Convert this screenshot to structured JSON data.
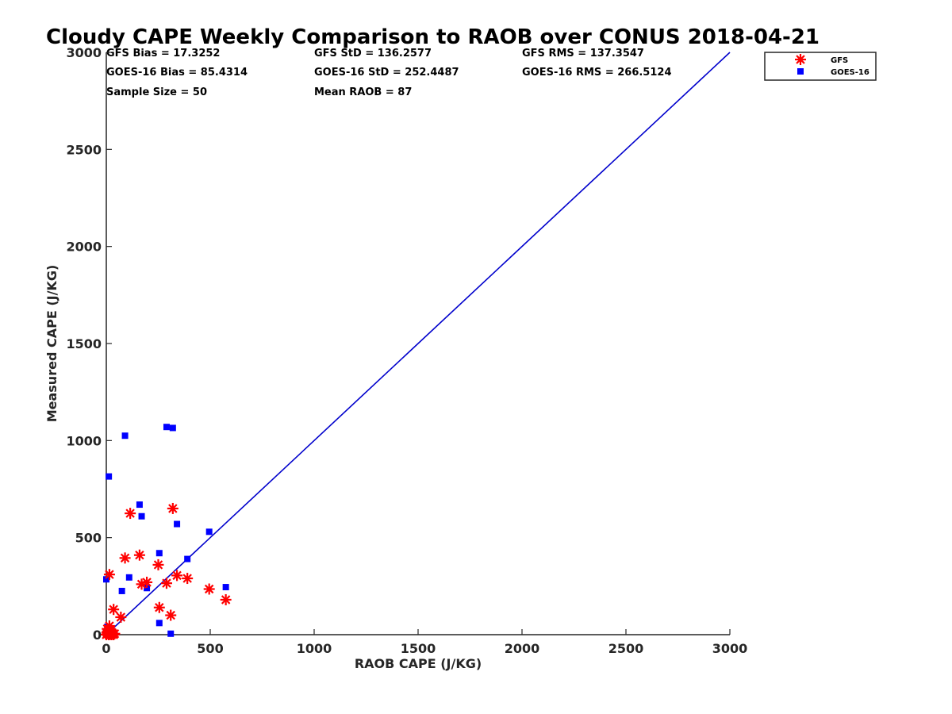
{
  "chart_data": {
    "type": "scatter",
    "title": "Cloudy CAPE Weekly Comparison to RAOB over CONUS 2018-04-21",
    "xlabel": "RAOB CAPE (J/KG)",
    "ylabel": "Measured CAPE (J/KG)",
    "xlim": [
      0,
      3000
    ],
    "ylim": [
      0,
      3000
    ],
    "xticks": [
      0,
      500,
      1000,
      1500,
      2000,
      2500,
      3000
    ],
    "yticks": [
      0,
      500,
      1000,
      1500,
      2000,
      2500,
      3000
    ],
    "tick_labels": [
      "0",
      "500",
      "1000",
      "1500",
      "2000",
      "2500",
      "3000"
    ],
    "grid": false,
    "legend_position": "top-right outside",
    "stats": [
      "GFS Bias = 17.3252",
      "GFS StD = 136.2577",
      "GFS RMS = 137.3547",
      "GOES-16 Bias = 85.4314",
      "GOES-16 StD = 252.4487",
      "GOES-16 RMS = 266.5124",
      "Sample Size = 50",
      "Mean RAOB = 87"
    ],
    "reference_line": {
      "name": "1:1",
      "x": [
        0,
        3000
      ],
      "y": [
        0,
        3000
      ],
      "color": "#0000cc"
    },
    "series": [
      {
        "name": "GFS",
        "marker": "asterisk",
        "color": "#ff0000",
        "x": [
          0,
          3,
          5,
          8,
          10,
          12,
          15,
          18,
          20,
          22,
          25,
          28,
          30,
          35,
          40,
          15,
          35,
          70,
          90,
          115,
          160,
          170,
          195,
          250,
          255,
          290,
          310,
          320,
          340,
          390,
          495,
          575
        ],
        "y": [
          0,
          10,
          30,
          5,
          20,
          0,
          45,
          2,
          15,
          25,
          0,
          10,
          5,
          0,
          5,
          310,
          130,
          90,
          395,
          625,
          410,
          260,
          270,
          360,
          140,
          265,
          100,
          650,
          305,
          290,
          235,
          180
        ]
      },
      {
        "name": "GOES-16",
        "marker": "square",
        "color": "#0000ff",
        "x": [
          0,
          2,
          5,
          8,
          10,
          12,
          15,
          18,
          20,
          25,
          30,
          40,
          0,
          12,
          75,
          90,
          110,
          160,
          170,
          195,
          255,
          255,
          290,
          310,
          320,
          340,
          390,
          495,
          575
        ],
        "y": [
          0,
          5,
          40,
          0,
          15,
          20,
          0,
          30,
          5,
          10,
          0,
          5,
          285,
          815,
          225,
          1025,
          295,
          670,
          610,
          240,
          420,
          60,
          1070,
          5,
          1065,
          570,
          390,
          530,
          245
        ]
      }
    ]
  }
}
